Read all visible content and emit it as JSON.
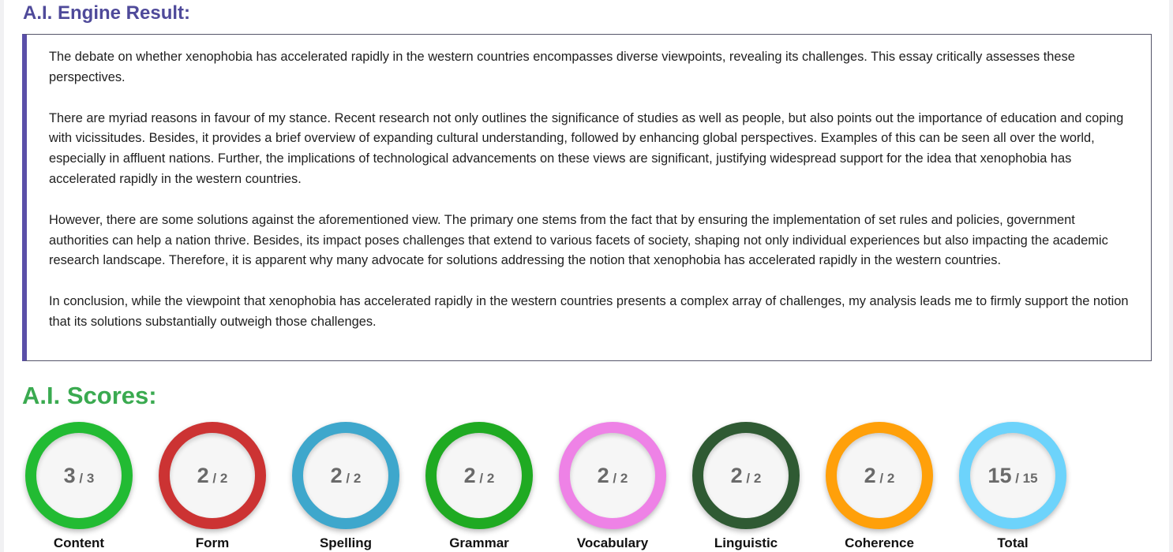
{
  "result": {
    "title": "A.I. Engine Result:",
    "paragraphs": [
      "The debate on whether xenophobia has accelerated rapidly in the western countries encompasses diverse viewpoints, revealing its challenges. This essay critically assesses these perspectives.",
      "There are myriad reasons in favour of my stance. Recent research not only outlines the significance of studies as well as people, but also points out the importance of education and coping with vicissitudes. Besides, it provides a brief overview of expanding cultural understanding, followed by enhancing global perspectives. Examples of this can be seen all over the world, especially in affluent nations. Further, the implications of technological advancements on these views are significant, justifying widespread support for the idea that xenophobia has accelerated rapidly in the western countries.",
      "However, there are some solutions against the aforementioned view. The primary one stems from the fact that by ensuring the implementation of set rules and policies, government authorities can help a nation thrive. Besides, its impact poses challenges that extend to various facets of society, shaping not only individual experiences but also impacting the academic research landscape. Therefore, it is apparent why many advocate for solutions addressing the notion that xenophobia has accelerated rapidly in the western countries.",
      "In conclusion, while the viewpoint that xenophobia has accelerated rapidly in the western countries presents a complex array of challenges, my analysis leads me to firmly support the notion that its solutions substantially outweigh those challenges."
    ]
  },
  "scores": {
    "title": "A.I. Scores:",
    "items": [
      {
        "label": "Content",
        "score": "3",
        "max": "3",
        "color": "#22bb33"
      },
      {
        "label": "Form",
        "score": "2",
        "max": "2",
        "color": "#cc3333"
      },
      {
        "label": "Spelling",
        "score": "2",
        "max": "2",
        "color": "#3ea7cc"
      },
      {
        "label": "Grammar",
        "score": "2",
        "max": "2",
        "color": "#1faa22"
      },
      {
        "label": "Vocabulary",
        "score": "2",
        "max": "2",
        "color": "#ee82e6"
      },
      {
        "label": "Linguistic",
        "score": "2",
        "max": "2",
        "color": "#2f5a33"
      },
      {
        "label": "Coherence",
        "score": "2",
        "max": "2",
        "color": "#ffa00a"
      },
      {
        "label": "Total",
        "score": "15",
        "max": "15",
        "color": "#6dd3fb"
      }
    ]
  }
}
